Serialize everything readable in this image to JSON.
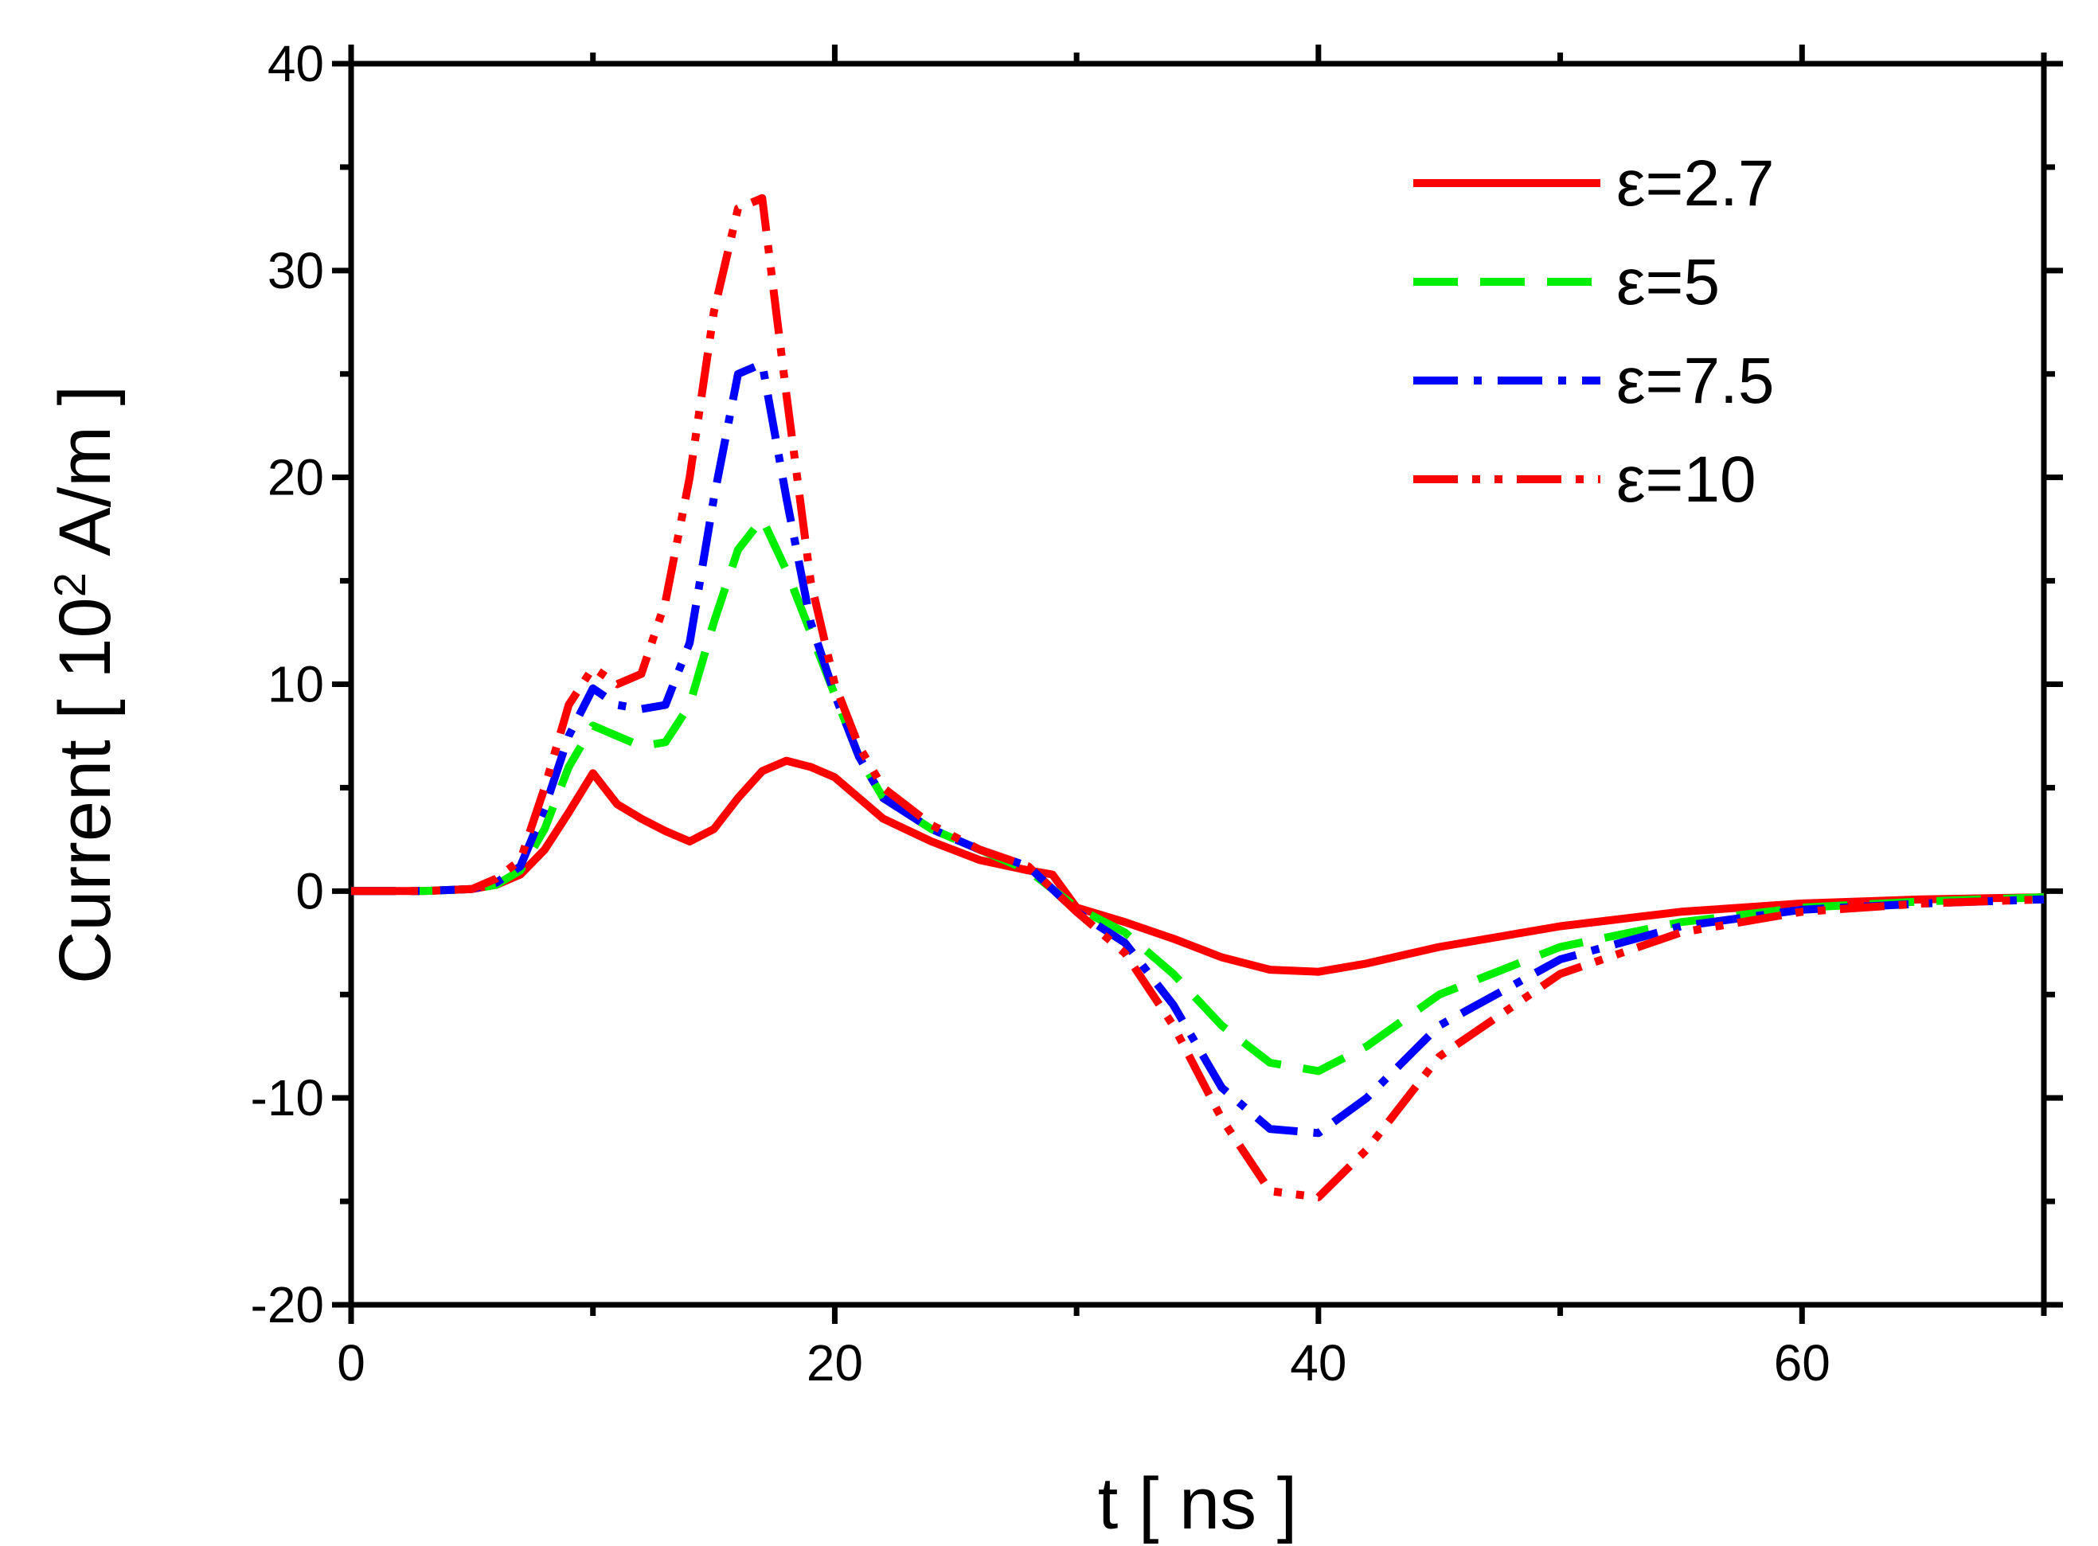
{
  "chart_data": {
    "type": "line",
    "title": "",
    "xlabel": "t [ ns ]",
    "ylabel_parts": {
      "prefix": "Current [ 10",
      "superscript": "2",
      "suffix": " A/m ]"
    },
    "xlim": [
      0,
      70
    ],
    "ylim": [
      -20,
      40
    ],
    "x_ticks": [
      0,
      20,
      40,
      60
    ],
    "x_tick_labels": [
      "0",
      "20",
      "40",
      "60"
    ],
    "x_minor_ticks": [
      10,
      30,
      50,
      70
    ],
    "y_ticks": [
      -20,
      -10,
      0,
      10,
      20,
      30,
      40
    ],
    "y_tick_labels": [
      "-20",
      "-10",
      "0",
      "10",
      "20",
      "30",
      "40"
    ],
    "y_minor_ticks": [
      -15,
      -5,
      5,
      15,
      25,
      35
    ],
    "grid": false,
    "legend_position": "top-right",
    "series": [
      {
        "name": "ε=2.7",
        "color": "#ff0000",
        "dash": "solid",
        "x": [
          0,
          3,
          5,
          6,
          7,
          8,
          9,
          10,
          11,
          12,
          13,
          14,
          15,
          16,
          17,
          18,
          19,
          20,
          21,
          22,
          24,
          26,
          28,
          29,
          30,
          32,
          34,
          36,
          38,
          40,
          42,
          45,
          50,
          55,
          60,
          65,
          70
        ],
        "y": [
          0,
          0,
          0.1,
          0.3,
          0.8,
          2.0,
          3.8,
          5.7,
          4.2,
          3.5,
          2.9,
          2.4,
          3.0,
          4.5,
          5.8,
          6.3,
          6.0,
          5.5,
          4.5,
          3.5,
          2.4,
          1.5,
          1.0,
          0.8,
          -0.8,
          -1.5,
          -2.3,
          -3.2,
          -3.8,
          -3.9,
          -3.5,
          -2.7,
          -1.7,
          -1.0,
          -0.6,
          -0.4,
          -0.3
        ]
      },
      {
        "name": "ε=5",
        "color": "#00ee00",
        "dash": "long-dash",
        "x": [
          0,
          3,
          5,
          6,
          7,
          8,
          9,
          10,
          11,
          12,
          13,
          14,
          15,
          16,
          17,
          18,
          19,
          20,
          21,
          22,
          24,
          26,
          28,
          30,
          32,
          34,
          36,
          38,
          40,
          42,
          45,
          50,
          55,
          60,
          65,
          70
        ],
        "y": [
          0,
          0,
          0.1,
          0.3,
          1.0,
          3.0,
          6.0,
          8.0,
          7.5,
          7.0,
          7.2,
          9.0,
          13.0,
          16.5,
          18.0,
          15.5,
          12.5,
          9.5,
          6.5,
          4.5,
          3.0,
          2.0,
          1.0,
          -0.8,
          -2.0,
          -4.0,
          -6.5,
          -8.3,
          -8.7,
          -7.5,
          -5.0,
          -2.7,
          -1.5,
          -0.8,
          -0.5,
          -0.3
        ]
      },
      {
        "name": "ε=7.5",
        "color": "#0000ff",
        "dash": "dash-dot",
        "x": [
          0,
          3,
          5,
          6,
          7,
          8,
          9,
          10,
          11,
          12,
          13,
          14,
          15,
          16,
          17,
          18,
          19,
          20,
          21,
          22,
          24,
          26,
          28,
          30,
          32,
          34,
          36,
          38,
          40,
          42,
          45,
          50,
          55,
          60,
          65,
          70
        ],
        "y": [
          0,
          0,
          0.1,
          0.4,
          1.2,
          4.0,
          7.5,
          9.8,
          9.0,
          8.8,
          9.0,
          12.0,
          19.0,
          25.0,
          25.5,
          19.0,
          13.0,
          9.5,
          6.5,
          4.5,
          3.0,
          2.0,
          1.2,
          -1.0,
          -2.5,
          -5.5,
          -9.5,
          -11.5,
          -11.7,
          -10.0,
          -6.5,
          -3.3,
          -1.7,
          -0.9,
          -0.6,
          -0.4
        ]
      },
      {
        "name": "ε=10",
        "color": "#ff0000",
        "dash": "dash-dot-dot",
        "x": [
          0,
          3,
          5,
          6,
          7,
          8,
          9,
          10,
          11,
          12,
          13,
          14,
          15,
          16,
          17,
          18,
          19,
          20,
          21,
          22,
          24,
          26,
          28,
          30,
          32,
          34,
          36,
          38,
          40,
          42,
          45,
          50,
          55,
          60,
          65,
          70
        ],
        "y": [
          0,
          0,
          0.1,
          0.6,
          1.5,
          5.0,
          9.0,
          10.8,
          10.0,
          10.5,
          14.0,
          20.0,
          28.0,
          33.0,
          33.5,
          24.0,
          15.0,
          10.0,
          7.0,
          5.0,
          3.2,
          2.0,
          1.2,
          -1.0,
          -3.0,
          -6.5,
          -11.0,
          -14.5,
          -14.8,
          -12.5,
          -8.0,
          -4.0,
          -2.0,
          -1.0,
          -0.6,
          -0.4
        ]
      }
    ]
  }
}
